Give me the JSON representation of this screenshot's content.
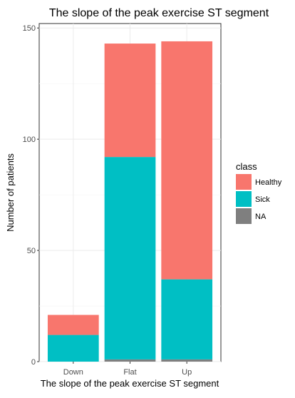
{
  "chart_data": {
    "type": "bar",
    "stacked": true,
    "title": "The slope of the peak exercise ST segment",
    "xlabel": "The slope of the peak exercise ST segment",
    "ylabel": "Number of patients",
    "categories": [
      "Down",
      "Flat",
      "Up"
    ],
    "ylim": [
      0,
      152
    ],
    "yticks": [
      0,
      50,
      100,
      150
    ],
    "grid": true,
    "legend": {
      "title": "class",
      "position": "right"
    },
    "series": [
      {
        "name": "NA",
        "color": "#7f7f7f",
        "values": [
          0,
          1,
          1
        ]
      },
      {
        "name": "Sick",
        "color": "#00bfc4",
        "values": [
          12,
          91,
          36
        ]
      },
      {
        "name": "Healthy",
        "color": "#f8766d",
        "values": [
          9,
          51,
          107
        ]
      }
    ]
  }
}
